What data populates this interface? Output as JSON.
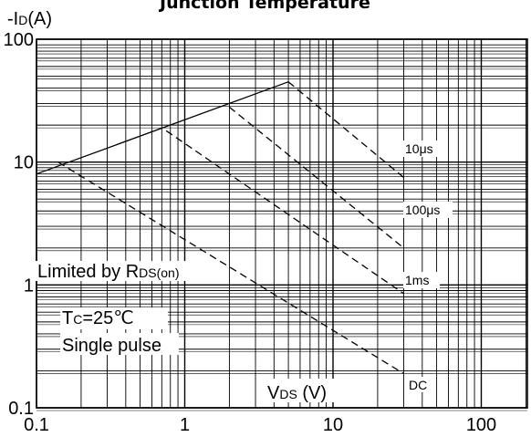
{
  "chart_data": {
    "type": "line",
    "title": "Junction Temperature",
    "ylabel": "-ID(A)",
    "xlabel": "VDS (V)",
    "x_scale": "log",
    "y_scale": "log",
    "xlim": [
      0.1,
      200
    ],
    "ylim": [
      0.1,
      100
    ],
    "x_ticks": [
      {
        "value": 0.1,
        "label": "0.1"
      },
      {
        "value": 1,
        "label": "1"
      },
      {
        "value": 10,
        "label": "10"
      },
      {
        "value": 100,
        "label": "100"
      }
    ],
    "y_ticks": [
      {
        "value": 0.1,
        "label": "0.1"
      },
      {
        "value": 1,
        "label": "1"
      },
      {
        "value": 10,
        "label": "10"
      },
      {
        "value": 100,
        "label": "100"
      }
    ],
    "grid": true,
    "series": [
      {
        "name": "Limited by RDS(on)",
        "style": "solid",
        "x": [
          0.1,
          5.0
        ],
        "y": [
          8.0,
          45.0
        ]
      },
      {
        "name": "10μs",
        "style": "dashed",
        "x": [
          5.0,
          30.0
        ],
        "y": [
          45.0,
          7.5
        ]
      },
      {
        "name": "100μs",
        "style": "dashed",
        "x": [
          2.0,
          30.0
        ],
        "y": [
          28.0,
          2.0
        ]
      },
      {
        "name": "1ms",
        "style": "dashed",
        "x": [
          0.75,
          30.0
        ],
        "y": [
          18.0,
          0.85
        ]
      },
      {
        "name": "DC",
        "style": "dashed",
        "x": [
          0.14,
          30.0
        ],
        "y": [
          10.0,
          0.19
        ]
      }
    ],
    "annotations": {
      "limited_prefix": "Limited by R",
      "limited_sub": "DS(on)",
      "tc_prefix": "T",
      "tc_sub": "C",
      "tc_suffix": "=25℃",
      "single_pulse": "Single pulse",
      "ylabel_prefix": "-I",
      "ylabel_sub": "D",
      "ylabel_suffix": "(A)",
      "xlabel_prefix": "V",
      "xlabel_sub": "DS",
      "xlabel_suffix": " (V)",
      "curve_labels": [
        "10μs",
        "100μs",
        "1ms",
        "DC"
      ]
    }
  }
}
